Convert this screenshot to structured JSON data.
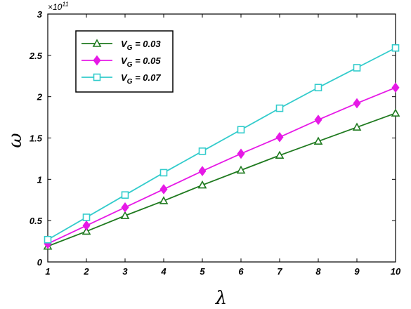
{
  "chart_data": {
    "type": "line",
    "xlabel": "λ",
    "ylabel": "ω",
    "y_exponent": {
      "base": "×10",
      "power": "11"
    },
    "x": [
      1,
      2,
      3,
      4,
      5,
      6,
      7,
      8,
      9,
      10
    ],
    "xlim": [
      1,
      10
    ],
    "ylim": [
      0,
      3
    ],
    "xticks": [
      1,
      2,
      3,
      4,
      5,
      6,
      7,
      8,
      9,
      10
    ],
    "yticks": [
      0,
      0.5,
      1,
      1.5,
      2,
      2.5,
      3
    ],
    "ytick_labels": [
      "0",
      "0.5",
      "1",
      "1.5",
      "2",
      "2.5",
      "3"
    ],
    "grid": false,
    "legend_position": "top-left",
    "series": [
      {
        "name_main": "V",
        "name_sub": "G",
        "name_rest": " = 0.03",
        "color": "#1f7a1f",
        "marker": "triangle",
        "values": [
          0.19,
          0.37,
          0.56,
          0.74,
          0.93,
          1.11,
          1.29,
          1.46,
          1.63,
          1.8
        ]
      },
      {
        "name_main": "V",
        "name_sub": "G",
        "name_rest": " = 0.05",
        "color": "#e619e6",
        "marker": "diamond",
        "values": [
          0.22,
          0.44,
          0.66,
          0.88,
          1.1,
          1.31,
          1.51,
          1.72,
          1.92,
          2.11
        ]
      },
      {
        "name_main": "V",
        "name_sub": "G",
        "name_rest": " = 0.07",
        "color": "#33cccc",
        "marker": "square",
        "values": [
          0.27,
          0.54,
          0.81,
          1.08,
          1.34,
          1.6,
          1.86,
          2.11,
          2.35,
          2.59
        ]
      }
    ]
  }
}
